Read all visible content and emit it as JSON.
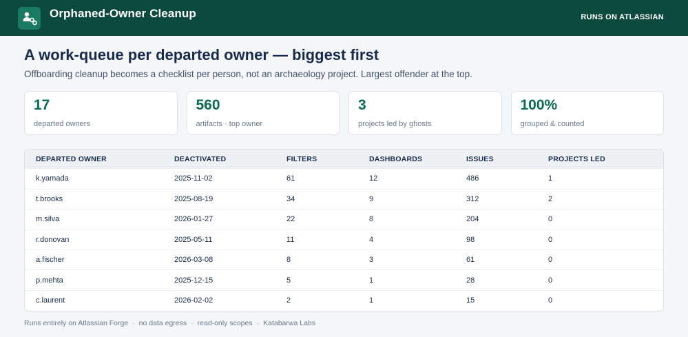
{
  "header": {
    "title": "Orphaned-Owner Cleanup",
    "badge": "RUNS ON ATLASSIAN",
    "logo_icon": "user-link-icon"
  },
  "main": {
    "headline": "A work-queue per departed owner — biggest first",
    "subheadline": "Offboarding cleanup becomes a checklist per person, not an archaeology project. Largest offender at the top."
  },
  "stats": [
    {
      "value": "17",
      "label": "departed owners"
    },
    {
      "value": "560",
      "label": "artifacts · top owner"
    },
    {
      "value": "3",
      "label": "projects led by ghosts"
    },
    {
      "value": "100%",
      "label": "grouped & counted"
    }
  ],
  "table": {
    "columns": [
      "DEPARTED OWNER",
      "DEACTIVATED",
      "FILTERS",
      "DASHBOARDS",
      "ISSUES",
      "PROJECTS LED"
    ],
    "rows": [
      [
        "k.yamada",
        "2025-11-02",
        "61",
        "12",
        "486",
        "1"
      ],
      [
        "t.brooks",
        "2025-08-19",
        "34",
        "9",
        "312",
        "2"
      ],
      [
        "m.silva",
        "2026-01-27",
        "22",
        "8",
        "204",
        "0"
      ],
      [
        "r.donovan",
        "2025-05-11",
        "11",
        "4",
        "98",
        "0"
      ],
      [
        "a.fischer",
        "2026-03-08",
        "8",
        "3",
        "61",
        "0"
      ],
      [
        "p.mehta",
        "2025-12-15",
        "5",
        "1",
        "28",
        "0"
      ],
      [
        "c.laurent",
        "2026-02-02",
        "2",
        "1",
        "15",
        "0"
      ]
    ]
  },
  "footer": {
    "items": [
      "Runs entirely on Atlassian Forge",
      "no data egress",
      "read-only scopes",
      "Katabarwa Labs"
    ],
    "separator": "·"
  },
  "colors": {
    "topbar": "#0b4a3c",
    "accent": "#0b6a52",
    "logo_bg": "#1b7a62"
  }
}
